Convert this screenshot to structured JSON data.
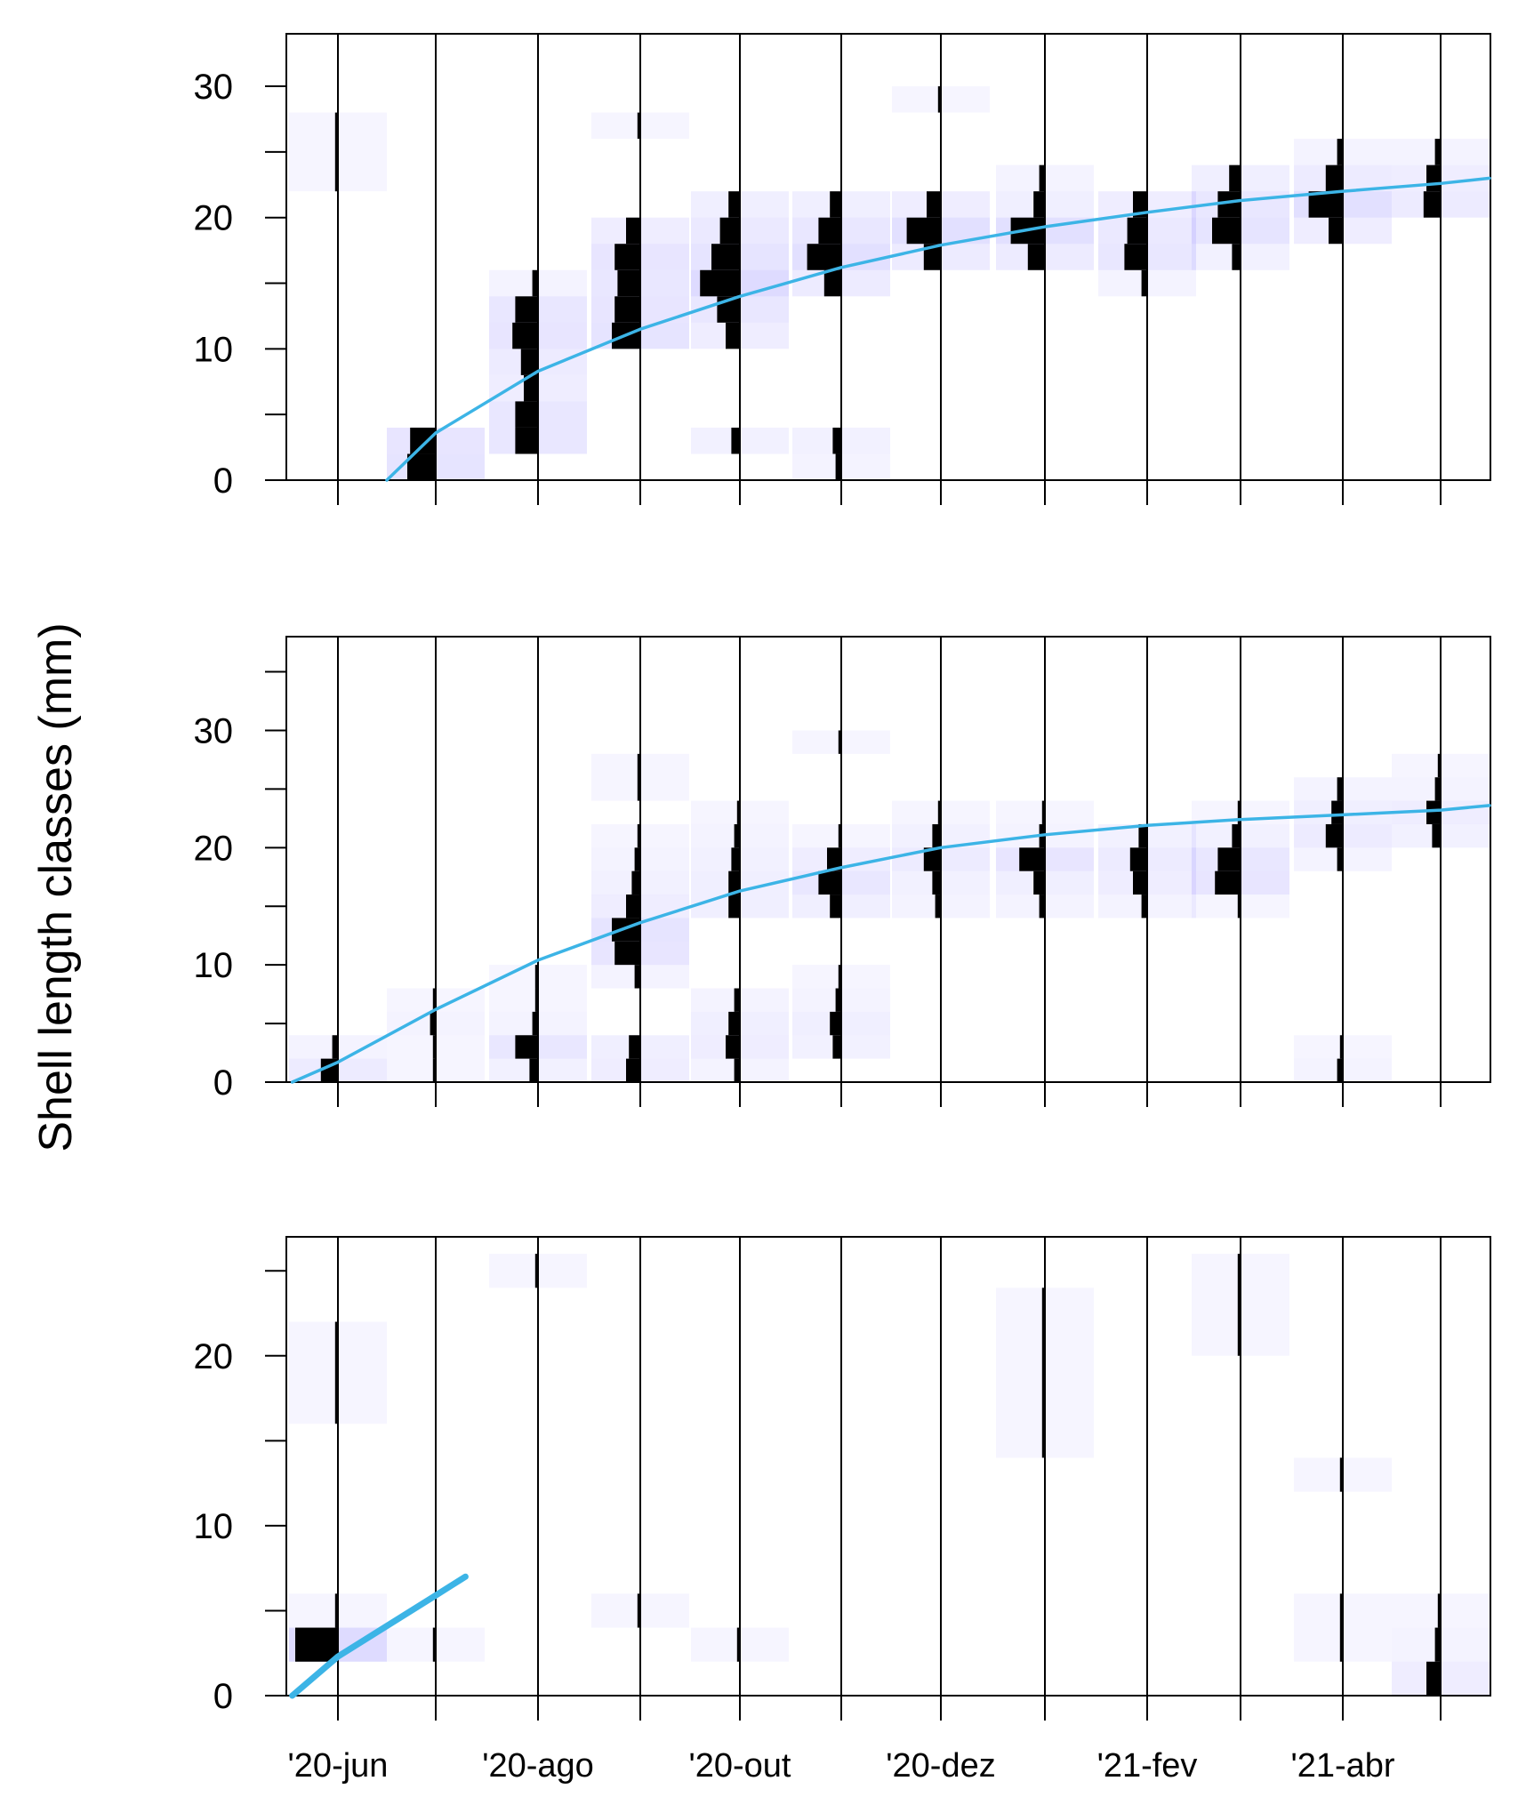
{
  "figure": {
    "ylabel": "Shell length classes (mm)",
    "x_tick_labels": [
      "'20-jun",
      "'20-ago",
      "'20-out",
      "'20-dez",
      "'21-fev",
      "'21-abr"
    ],
    "sample_dates": [
      "2020-06-01",
      "2020-07-01",
      "2020-08-01",
      "2020-09-01",
      "2020-10-01",
      "2020-11-01",
      "2020-12-01",
      "2021-01-01",
      "2021-02-01",
      "2021-03-01",
      "2021-04-01",
      "2021-05-01"
    ],
    "colors": {
      "histogram": "#000000",
      "residual_shade": "#6a5cff",
      "growth_curve": "#3cb4e6",
      "frame": "#000000"
    }
  },
  "chart_data": [
    {
      "type": "length-frequency histogram with growth curve",
      "ylabel": "Shell length classes (mm)",
      "ylim": [
        0,
        34
      ],
      "yticks": [
        0,
        10,
        20,
        30
      ],
      "class_width_mm": 2,
      "samples": [
        {
          "date": "2020-06-01",
          "bins": [
            [
              22,
              28,
              1
            ]
          ]
        },
        {
          "date": "2020-07-01",
          "bins": [
            [
              0,
              2,
              10
            ],
            [
              2,
              4,
              9
            ]
          ]
        },
        {
          "date": "2020-08-01",
          "bins": [
            [
              2,
              4,
              8
            ],
            [
              4,
              6,
              8
            ],
            [
              6,
              8,
              5
            ],
            [
              8,
              10,
              6
            ],
            [
              10,
              12,
              9
            ],
            [
              12,
              14,
              8
            ],
            [
              14,
              16,
              2
            ]
          ]
        },
        {
          "date": "2020-09-01",
          "bins": [
            [
              10,
              12,
              10
            ],
            [
              12,
              14,
              9
            ],
            [
              14,
              16,
              8
            ],
            [
              16,
              18,
              9
            ],
            [
              18,
              20,
              5
            ],
            [
              26,
              28,
              1
            ]
          ]
        },
        {
          "date": "2020-10-01",
          "bins": [
            [
              2,
              4,
              3
            ],
            [
              10,
              12,
              5
            ],
            [
              12,
              14,
              8
            ],
            [
              14,
              16,
              14
            ],
            [
              16,
              18,
              10
            ],
            [
              18,
              20,
              7
            ],
            [
              20,
              22,
              4
            ]
          ]
        },
        {
          "date": "2020-11-01",
          "bins": [
            [
              0,
              2,
              2
            ],
            [
              2,
              4,
              3
            ],
            [
              14,
              16,
              6
            ],
            [
              16,
              18,
              12
            ],
            [
              18,
              20,
              8
            ],
            [
              20,
              22,
              4
            ]
          ]
        },
        {
          "date": "2020-12-01",
          "bins": [
            [
              16,
              18,
              6
            ],
            [
              18,
              20,
              12
            ],
            [
              20,
              22,
              5
            ],
            [
              28,
              30,
              1
            ]
          ]
        },
        {
          "date": "2021-01-01",
          "bins": [
            [
              16,
              18,
              6
            ],
            [
              18,
              20,
              12
            ],
            [
              20,
              22,
              4
            ],
            [
              22,
              24,
              2
            ]
          ]
        },
        {
          "date": "2021-02-01",
          "bins": [
            [
              14,
              16,
              2
            ],
            [
              16,
              18,
              8
            ],
            [
              18,
              20,
              7
            ],
            [
              20,
              22,
              5
            ]
          ]
        },
        {
          "date": "2021-03-01",
          "bins": [
            [
              16,
              18,
              3
            ],
            [
              18,
              20,
              10
            ],
            [
              20,
              22,
              8
            ],
            [
              22,
              24,
              4
            ]
          ]
        },
        {
          "date": "2021-04-01",
          "bins": [
            [
              18,
              20,
              5
            ],
            [
              20,
              22,
              12
            ],
            [
              22,
              24,
              6
            ],
            [
              24,
              26,
              2
            ]
          ]
        },
        {
          "date": "2021-05-01",
          "bins": [
            [
              20,
              22,
              6
            ],
            [
              22,
              24,
              5
            ],
            [
              24,
              26,
              2
            ]
          ]
        }
      ],
      "growth_curve": {
        "dates": [
          "2020-06-16",
          "2020-07-01",
          "2020-08-01",
          "2020-09-01",
          "2020-10-01",
          "2020-11-01",
          "2020-12-01",
          "2021-01-01",
          "2021-02-01",
          "2021-03-01",
          "2021-04-01",
          "2021-05-01",
          "2021-05-16"
        ],
        "length_mm": [
          0,
          3.6,
          8.3,
          11.5,
          14,
          16.2,
          17.9,
          19.3,
          20.4,
          21.3,
          22,
          22.6,
          23
        ]
      }
    },
    {
      "type": "length-frequency histogram with growth curve",
      "ylim": [
        0,
        38
      ],
      "yticks": [
        0,
        10,
        20,
        30
      ],
      "class_width_mm": 2,
      "samples": [
        {
          "date": "2020-06-01",
          "bins": [
            [
              0,
              2,
              6
            ],
            [
              2,
              4,
              2
            ]
          ]
        },
        {
          "date": "2020-07-01",
          "bins": [
            [
              0,
              2,
              1
            ],
            [
              2,
              4,
              1
            ],
            [
              4,
              6,
              2
            ],
            [
              6,
              8,
              1
            ]
          ]
        },
        {
          "date": "2020-08-01",
          "bins": [
            [
              0,
              2,
              3
            ],
            [
              2,
              4,
              8
            ],
            [
              4,
              6,
              2
            ],
            [
              6,
              8,
              1
            ],
            [
              8,
              10,
              1
            ]
          ]
        },
        {
          "date": "2020-09-01",
          "bins": [
            [
              0,
              2,
              5
            ],
            [
              2,
              4,
              4
            ],
            [
              8,
              10,
              2
            ],
            [
              10,
              12,
              9
            ],
            [
              12,
              14,
              10
            ],
            [
              14,
              16,
              5
            ],
            [
              16,
              18,
              3
            ],
            [
              18,
              20,
              2
            ],
            [
              20,
              22,
              1
            ],
            [
              24,
              28,
              1
            ]
          ]
        },
        {
          "date": "2020-10-01",
          "bins": [
            [
              0,
              2,
              2
            ],
            [
              2,
              4,
              5
            ],
            [
              4,
              6,
              4
            ],
            [
              6,
              8,
              2
            ],
            [
              14,
              16,
              4
            ],
            [
              16,
              18,
              4
            ],
            [
              18,
              20,
              3
            ],
            [
              20,
              22,
              2
            ],
            [
              22,
              24,
              1
            ]
          ]
        },
        {
          "date": "2020-11-01",
          "bins": [
            [
              2,
              4,
              3
            ],
            [
              4,
              6,
              4
            ],
            [
              6,
              8,
              2
            ],
            [
              8,
              10,
              1
            ],
            [
              14,
              16,
              4
            ],
            [
              16,
              18,
              8
            ],
            [
              18,
              20,
              5
            ],
            [
              20,
              22,
              1
            ],
            [
              28,
              30,
              1
            ]
          ]
        },
        {
          "date": "2020-12-01",
          "bins": [
            [
              14,
              16,
              2
            ],
            [
              16,
              18,
              3
            ],
            [
              18,
              20,
              6
            ],
            [
              20,
              22,
              3
            ],
            [
              22,
              24,
              1
            ]
          ]
        },
        {
          "date": "2021-01-01",
          "bins": [
            [
              14,
              16,
              2
            ],
            [
              16,
              18,
              4
            ],
            [
              18,
              20,
              9
            ],
            [
              20,
              22,
              2
            ],
            [
              22,
              24,
              1
            ]
          ]
        },
        {
          "date": "2021-02-01",
          "bins": [
            [
              14,
              16,
              2
            ],
            [
              16,
              18,
              5
            ],
            [
              18,
              20,
              6
            ],
            [
              20,
              22,
              3
            ]
          ]
        },
        {
          "date": "2021-03-01",
          "bins": [
            [
              14,
              16,
              1
            ],
            [
              16,
              18,
              9
            ],
            [
              18,
              20,
              8
            ],
            [
              20,
              22,
              3
            ],
            [
              22,
              24,
              1
            ]
          ]
        },
        {
          "date": "2021-04-01",
          "bins": [
            [
              0,
              2,
              2
            ],
            [
              2,
              4,
              1
            ],
            [
              18,
              20,
              2
            ],
            [
              20,
              22,
              6
            ],
            [
              22,
              24,
              4
            ],
            [
              24,
              26,
              2
            ]
          ]
        },
        {
          "date": "2021-05-01",
          "bins": [
            [
              20,
              22,
              3
            ],
            [
              22,
              24,
              5
            ],
            [
              24,
              26,
              2
            ],
            [
              26,
              28,
              1
            ]
          ]
        }
      ],
      "growth_curve": {
        "dates": [
          "2020-05-18",
          "2020-06-01",
          "2020-07-01",
          "2020-08-01",
          "2020-09-01",
          "2020-10-01",
          "2020-11-01",
          "2020-12-01",
          "2021-01-01",
          "2021-02-01",
          "2021-03-01",
          "2021-04-01",
          "2021-05-01",
          "2021-05-16"
        ],
        "length_mm": [
          0,
          1.7,
          6.2,
          10.4,
          13.6,
          16.3,
          18.3,
          20,
          21.1,
          21.9,
          22.4,
          22.8,
          23.2,
          23.6
        ]
      }
    },
    {
      "type": "length-frequency histogram with growth curve",
      "ylim": [
        0,
        27
      ],
      "yticks": [
        0,
        10,
        20
      ],
      "class_width_mm": 2,
      "samples": [
        {
          "date": "2020-06-01",
          "bins": [
            [
              2,
              4,
              15
            ],
            [
              4,
              6,
              1
            ],
            [
              16,
              22,
              1
            ]
          ]
        },
        {
          "date": "2020-07-01",
          "bins": [
            [
              2,
              4,
              1
            ]
          ]
        },
        {
          "date": "2020-08-01",
          "bins": [
            [
              24,
              26,
              1
            ]
          ]
        },
        {
          "date": "2020-09-01",
          "bins": [
            [
              4,
              6,
              1
            ]
          ]
        },
        {
          "date": "2020-10-01",
          "bins": [
            [
              2,
              4,
              1
            ]
          ]
        },
        {
          "date": "2020-11-01",
          "bins": []
        },
        {
          "date": "2020-12-01",
          "bins": []
        },
        {
          "date": "2021-01-01",
          "bins": [
            [
              14,
              24,
              1
            ]
          ]
        },
        {
          "date": "2021-02-01",
          "bins": []
        },
        {
          "date": "2021-03-01",
          "bins": [
            [
              20,
              26,
              1
            ]
          ]
        },
        {
          "date": "2021-04-01",
          "bins": [
            [
              2,
              6,
              1
            ],
            [
              12,
              14,
              1
            ]
          ]
        },
        {
          "date": "2021-05-01",
          "bins": [
            [
              0,
              2,
              5
            ],
            [
              2,
              4,
              2
            ],
            [
              4,
              6,
              1
            ]
          ]
        }
      ],
      "growth_curve": {
        "dates": [
          "2020-05-18",
          "2020-06-01",
          "2020-07-01",
          "2020-07-10"
        ],
        "length_mm": [
          0,
          2.3,
          5.9,
          7
        ]
      }
    }
  ]
}
